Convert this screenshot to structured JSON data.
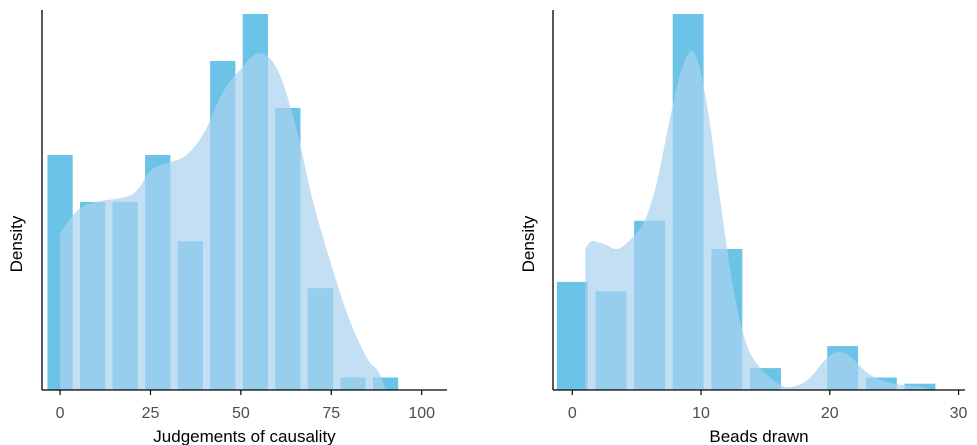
{
  "colors": {
    "bar": "#6cc3e8",
    "density_fill": "#a9d1f0",
    "axis": "#000000"
  },
  "chart_data": [
    {
      "type": "histogram",
      "xlabel": "Judgements of causality",
      "ylabel": "Density",
      "xlim": [
        -5,
        107
      ],
      "ylim": [
        0,
        24
      ],
      "xticks": [
        "0",
        "25",
        "50",
        "75",
        "100"
      ],
      "xtick_values": [
        0,
        25,
        50,
        75,
        100
      ],
      "grid": false,
      "bins": [
        {
          "x0": -3.5,
          "x1": 3.5,
          "count": 15
        },
        {
          "x0": 5.5,
          "x1": 12.5,
          "count": 12
        },
        {
          "x0": 14.5,
          "x1": 21.5,
          "count": 12
        },
        {
          "x0": 23.5,
          "x1": 30.5,
          "count": 15
        },
        {
          "x0": 32.5,
          "x1": 39.5,
          "count": 9.5
        },
        {
          "x0": 41.5,
          "x1": 48.5,
          "count": 21
        },
        {
          "x0": 50.5,
          "x1": 57.5,
          "count": 24
        },
        {
          "x0": 59.5,
          "x1": 66.5,
          "count": 18
        },
        {
          "x0": 68.5,
          "x1": 75.5,
          "count": 6.5
        },
        {
          "x0": 77.5,
          "x1": 84.5,
          "count": 0.8
        },
        {
          "x0": 86.5,
          "x1": 93.5,
          "count": 0.8
        }
      ],
      "density": [
        [
          0,
          10
        ],
        [
          5,
          11.5
        ],
        [
          10,
          12
        ],
        [
          20,
          12.5
        ],
        [
          25,
          14
        ],
        [
          30,
          14.5
        ],
        [
          35,
          15
        ],
        [
          40,
          16.5
        ],
        [
          45,
          19
        ],
        [
          50,
          20.5
        ],
        [
          55,
          21.5
        ],
        [
          60,
          20.5
        ],
        [
          65,
          17
        ],
        [
          70,
          12
        ],
        [
          75,
          8
        ],
        [
          80,
          4.5
        ],
        [
          85,
          2
        ],
        [
          88,
          1.2
        ],
        [
          90,
          0
        ]
      ]
    },
    {
      "type": "histogram",
      "xlabel": "Beads drawn",
      "ylabel": "Density",
      "xlim": [
        -1.5,
        30.5
      ],
      "ylim": [
        0,
        24
      ],
      "xticks": [
        "0",
        "10",
        "20",
        "30"
      ],
      "xtick_values": [
        0,
        10,
        20,
        30
      ],
      "grid": false,
      "bins": [
        {
          "x0": -1.2,
          "x1": 1.2,
          "count": 6.9
        },
        {
          "x0": 1.8,
          "x1": 4.2,
          "count": 6.3
        },
        {
          "x0": 4.8,
          "x1": 7.2,
          "count": 10.8
        },
        {
          "x0": 7.8,
          "x1": 10.2,
          "count": 24
        },
        {
          "x0": 10.8,
          "x1": 13.2,
          "count": 9
        },
        {
          "x0": 13.8,
          "x1": 16.2,
          "count": 1.4
        },
        {
          "x0": 19.8,
          "x1": 22.2,
          "count": 2.8
        },
        {
          "x0": 22.8,
          "x1": 25.2,
          "count": 0.8
        },
        {
          "x0": 25.8,
          "x1": 28.2,
          "count": 0.4
        }
      ],
      "density": [
        [
          1,
          9
        ],
        [
          1.5,
          9.5
        ],
        [
          2.5,
          9.3
        ],
        [
          3.5,
          9
        ],
        [
          4.5,
          9.6
        ],
        [
          5.5,
          10.6
        ],
        [
          6.5,
          13
        ],
        [
          7.5,
          17
        ],
        [
          8.5,
          20.5
        ],
        [
          9.5,
          21.5
        ],
        [
          10.5,
          18
        ],
        [
          11.5,
          12
        ],
        [
          12.5,
          6.5
        ],
        [
          13.5,
          3
        ],
        [
          14.5,
          1.5
        ],
        [
          15.5,
          0.7
        ],
        [
          16.5,
          0.2
        ],
        [
          17.5,
          0.3
        ],
        [
          18.5,
          0.8
        ],
        [
          19.5,
          1.8
        ],
        [
          20.5,
          2.4
        ],
        [
          21.5,
          2.2
        ],
        [
          22.5,
          1.4
        ],
        [
          23.5,
          0.8
        ],
        [
          25,
          0.4
        ],
        [
          27,
          0.2
        ],
        [
          28,
          0
        ]
      ]
    }
  ]
}
